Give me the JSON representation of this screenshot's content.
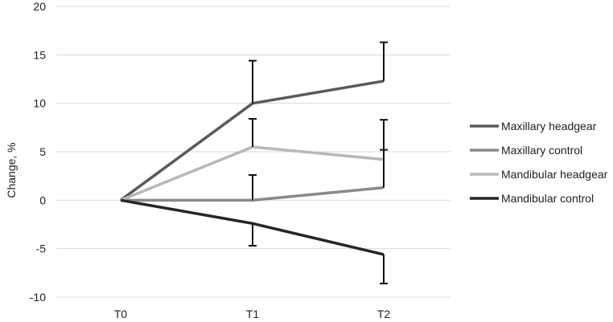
{
  "chart_data": {
    "type": "line",
    "categories": [
      "T0",
      "T1",
      "T2"
    ],
    "ylabel": "Change, %",
    "xlabel": "",
    "ylim": [
      -10,
      20
    ],
    "yticks": [
      -10,
      -5,
      0,
      5,
      10,
      15,
      20
    ],
    "grid": true,
    "legend_position": "right",
    "series": [
      {
        "name": "Maxillary headgear",
        "color": "#5a5a5a",
        "values": [
          0,
          10.0,
          12.3
        ],
        "error_upper": [
          null,
          14.4,
          16.3
        ],
        "error_lower": [
          null,
          null,
          null
        ]
      },
      {
        "name": "Maxillary control",
        "color": "#8a8a8a",
        "values": [
          0,
          0.0,
          1.3
        ],
        "error_upper": [
          null,
          2.6,
          5.2
        ],
        "error_lower": [
          null,
          null,
          null
        ]
      },
      {
        "name": "Mandibular headgear",
        "color": "#b8b8b8",
        "values": [
          0,
          5.5,
          4.2
        ],
        "error_upper": [
          null,
          8.4,
          8.3
        ],
        "error_lower": [
          null,
          null,
          null
        ]
      },
      {
        "name": "Mandibular control",
        "color": "#262626",
        "values": [
          0,
          -2.4,
          -5.6
        ],
        "error_upper": [
          null,
          null,
          null
        ],
        "error_lower": [
          null,
          -4.7,
          -8.6
        ]
      }
    ]
  }
}
